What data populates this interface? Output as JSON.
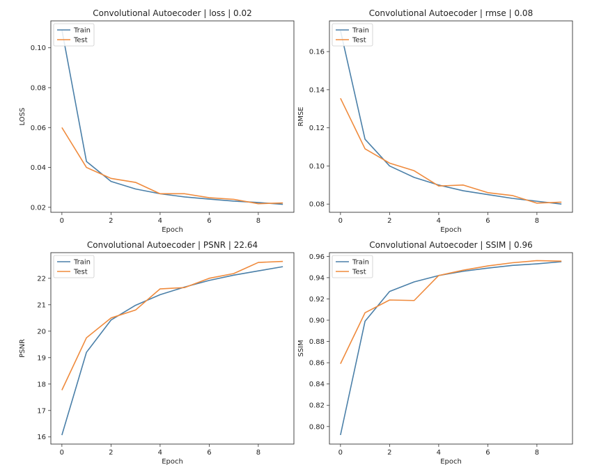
{
  "colors": {
    "train": "#4a7fa8",
    "test": "#ef8a3c",
    "axes": "#333333"
  },
  "chart_data": [
    {
      "type": "line",
      "title": "Convolutional Autoecoder | loss | 0.02",
      "xlabel": "Epoch",
      "ylabel": "LOSS",
      "x": [
        0,
        1,
        2,
        3,
        4,
        5,
        6,
        7,
        8,
        9
      ],
      "xlim": [
        -0.45,
        9.45
      ],
      "ylim": [
        0.0175,
        0.1135
      ],
      "xticks": [
        0,
        2,
        4,
        6,
        8
      ],
      "yticks": [
        0.02,
        0.04,
        0.06,
        0.08,
        0.1
      ],
      "yticklabels": [
        "0.02",
        "0.04",
        "0.06",
        "0.08",
        "0.10"
      ],
      "legend": "top-left",
      "grid": false,
      "series": [
        {
          "name": "Train",
          "values": [
            0.109,
            0.043,
            0.033,
            0.0292,
            0.0268,
            0.0252,
            0.0241,
            0.0231,
            0.0224,
            0.0215
          ]
        },
        {
          "name": "Test",
          "values": [
            0.06,
            0.04,
            0.0345,
            0.0325,
            0.0268,
            0.0268,
            0.0248,
            0.024,
            0.0218,
            0.0222
          ]
        }
      ]
    },
    {
      "type": "line",
      "title": "Convolutional Autoecoder | rmse | 0.08",
      "xlabel": "Epoch",
      "ylabel": "RMSE",
      "x": [
        0,
        1,
        2,
        3,
        4,
        5,
        6,
        7,
        8,
        9
      ],
      "xlim": [
        -0.45,
        9.45
      ],
      "ylim": [
        0.0757,
        0.1761
      ],
      "xticks": [
        0,
        2,
        4,
        6,
        8
      ],
      "yticks": [
        0.08,
        0.1,
        0.12,
        0.14,
        0.16
      ],
      "yticklabels": [
        "0.08",
        "0.10",
        "0.12",
        "0.14",
        "0.16"
      ],
      "legend": "top-left",
      "grid": false,
      "series": [
        {
          "name": "Train",
          "values": [
            0.171,
            0.114,
            0.1,
            0.094,
            0.09,
            0.087,
            0.085,
            0.083,
            0.0815,
            0.08
          ]
        },
        {
          "name": "Test",
          "values": [
            0.1355,
            0.109,
            0.1015,
            0.0975,
            0.0895,
            0.09,
            0.086,
            0.0845,
            0.0805,
            0.081
          ]
        }
      ]
    },
    {
      "type": "line",
      "title": "Convolutional Autoecoder | PSNR | 22.64",
      "xlabel": "Epoch",
      "ylabel": "PSNR",
      "x": [
        0,
        1,
        2,
        3,
        4,
        5,
        6,
        7,
        8,
        9
      ],
      "xlim": [
        -0.45,
        9.45
      ],
      "ylim": [
        15.73,
        22.97
      ],
      "xticks": [
        0,
        2,
        4,
        6,
        8
      ],
      "yticks": [
        16,
        17,
        18,
        19,
        20,
        21,
        22
      ],
      "yticklabels": [
        "16",
        "17",
        "18",
        "19",
        "20",
        "21",
        "22"
      ],
      "legend": "top-left",
      "grid": false,
      "series": [
        {
          "name": "Train",
          "values": [
            16.07,
            19.2,
            20.42,
            20.98,
            21.38,
            21.67,
            21.92,
            22.12,
            22.28,
            22.44
          ]
        },
        {
          "name": "Test",
          "values": [
            17.77,
            19.75,
            20.5,
            20.8,
            21.6,
            21.65,
            22.0,
            22.18,
            22.6,
            22.64
          ]
        }
      ]
    },
    {
      "type": "line",
      "title": "Convolutional Autoecoder | SSIM | 0.96",
      "xlabel": "Epoch",
      "ylabel": "SSIM",
      "x": [
        0,
        1,
        2,
        3,
        4,
        5,
        6,
        7,
        8,
        9
      ],
      "xlim": [
        -0.45,
        9.45
      ],
      "ylim": [
        0.7835,
        0.9635
      ],
      "xticks": [
        0,
        2,
        4,
        6,
        8
      ],
      "yticks": [
        0.8,
        0.82,
        0.84,
        0.86,
        0.88,
        0.9,
        0.92,
        0.94,
        0.96
      ],
      "yticklabels": [
        "0.80",
        "0.82",
        "0.84",
        "0.86",
        "0.88",
        "0.90",
        "0.92",
        "0.94",
        "0.96"
      ],
      "legend": "top-left",
      "grid": false,
      "series": [
        {
          "name": "Train",
          "values": [
            0.792,
            0.899,
            0.927,
            0.936,
            0.942,
            0.946,
            0.949,
            0.9515,
            0.953,
            0.955
          ]
        },
        {
          "name": "Test",
          "values": [
            0.859,
            0.907,
            0.919,
            0.9185,
            0.942,
            0.947,
            0.951,
            0.954,
            0.956,
            0.9555
          ]
        }
      ]
    }
  ]
}
